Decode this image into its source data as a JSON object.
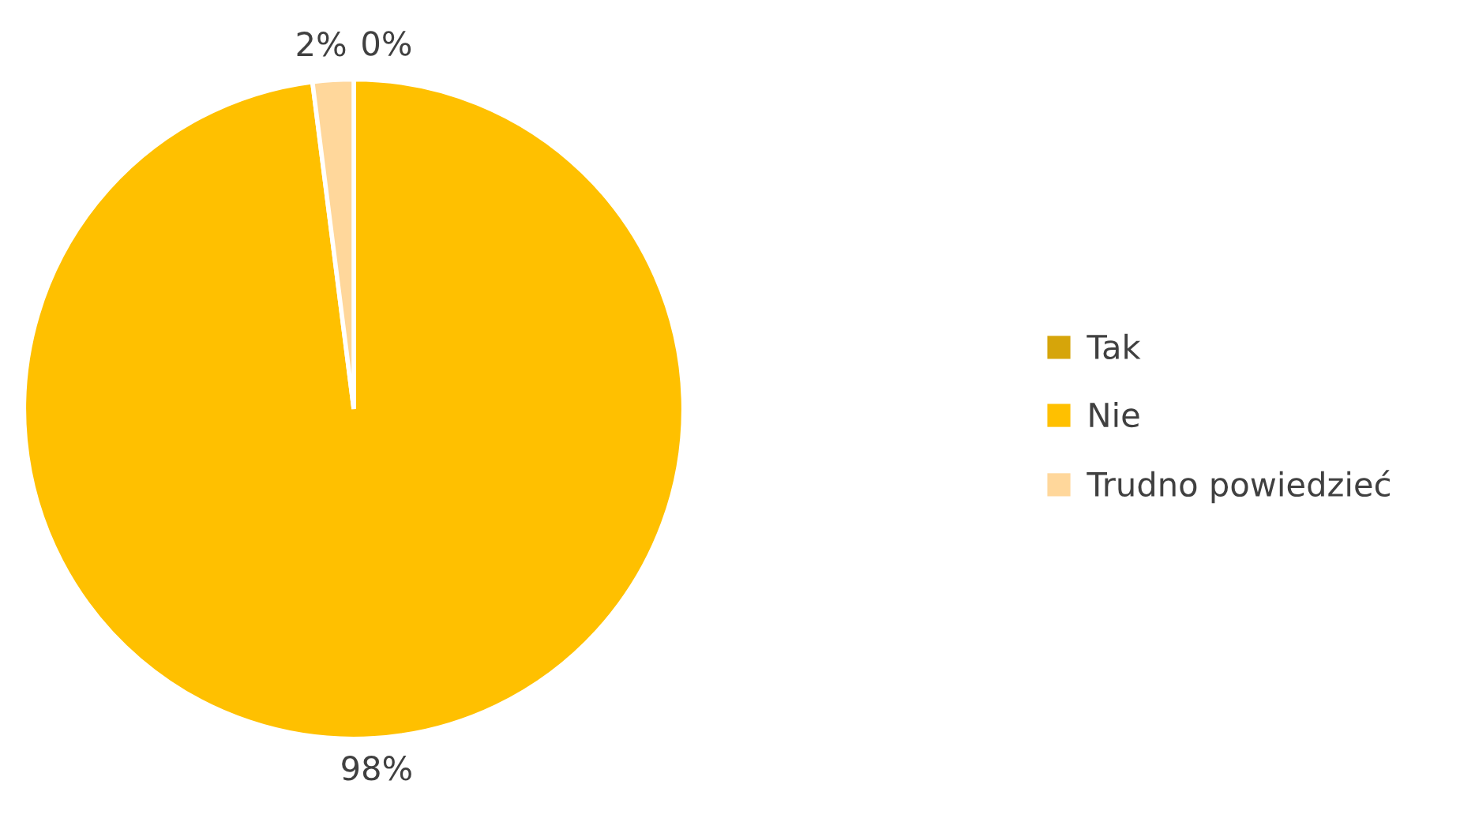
{
  "chart_data": {
    "type": "pie",
    "categories": [
      "Tak",
      "Nie",
      "Trudno powiedzieć"
    ],
    "values": [
      0,
      98,
      2
    ],
    "colors": [
      "#d6a50a",
      "#ffc000",
      "#ffd79b"
    ],
    "value_labels": [
      "0%",
      "98%",
      "2%"
    ],
    "legend": "right"
  }
}
